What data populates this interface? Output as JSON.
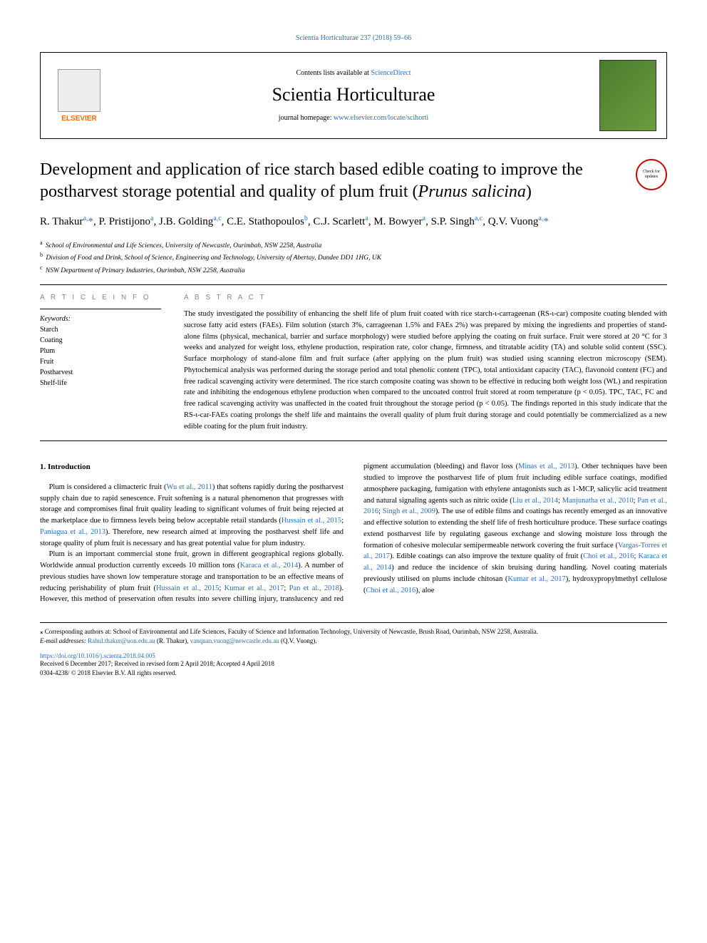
{
  "journal": {
    "top_citation": "Scientia Horticulturae 237 (2018) 59–66",
    "contents_prefix": "Contents lists available at ",
    "contents_link": "ScienceDirect",
    "name": "Scientia Horticulturae",
    "homepage_prefix": "journal homepage: ",
    "homepage_url": "www.elsevier.com/locate/scihorti",
    "elsevier_label": "ELSEVIER"
  },
  "check_updates": {
    "line1": "Check for",
    "line2": "updates"
  },
  "article": {
    "title_pre": "Development and application of rice starch based edible coating to improve the postharvest storage potential and quality of plum fruit (",
    "title_species": "Prunus salicina",
    "title_post": ")",
    "authors_html": "R. Thakur<sup>a,</sup><a href='#'>*</a>, P. Pristijono<sup>a</sup>, J.B. Golding<sup>a,c</sup>, C.E. Stathopoulos<sup>b</sup>, C.J. Scarlett<sup>a</sup>, M. Bowyer<sup>a</sup>, S.P. Singh<sup>a,c</sup>, Q.V. Vuong<sup>a,</sup><a href='#'>*</a>",
    "affiliations": [
      {
        "sup": "a",
        "text": "School of Environmental and Life Sciences, University of Newcastle, Ourimbah, NSW 2258, Australia"
      },
      {
        "sup": "b",
        "text": "Division of Food and Drink, School of Science, Engineering and Technology, University of Abertay, Dundee DD1 1HG, UK"
      },
      {
        "sup": "c",
        "text": "NSW Department of Primary Industries, Ourimbah, NSW 2258, Australia"
      }
    ]
  },
  "info": {
    "article_info_label": "A R T I C L E  I N F O",
    "abstract_label": "A B S T R A C T",
    "keywords_label": "Keywords:",
    "keywords": [
      "Starch",
      "Coating",
      "Plum",
      "Fruit",
      "Postharvest",
      "Shelf-life"
    ],
    "abstract": "The study investigated the possibility of enhancing the shelf life of plum fruit coated with rice starch-ι-carrageenan (RS-ι-car) composite coating blended with sucrose fatty acid esters (FAEs). Film solution (starch 3%, carrageenan 1.5% and FAEs 2%) was prepared by mixing the ingredients and properties of stand-alone films (physical, mechanical, barrier and surface morphology) were studied before applying the coating on fruit surface. Fruit were stored at 20 °C for 3 weeks and analyzed for weight loss, ethylene production, respiration rate, color change, firmness, and titratable acidity (TA) and soluble solid content (SSC). Surface morphology of stand-alone film and fruit surface (after applying on the plum fruit) was studied using scanning electron microscopy (SEM). Phytochemical analysis was performed during the storage period and total phenolic content (TPC), total antioxidant capacity (TAC), flavonoid content (FC) and free radical scavenging activity were determined. The rice starch composite coating was shown to be effective in reducing both weight loss (WL) and respiration rate and inhibiting the endogenous ethylene production when compared to the uncoated control fruit stored at room temperature (p < 0.05). TPC, TAC, FC and free radical scavenging activity was unaffected in the coated fruit throughout the storage period (p < 0.05). The findings reported in this study indicate that the RS-ι-car-FAEs coating prolongs the shelf life and maintains the overall quality of plum fruit during storage and could potentially be commercialized as a new edible coating for the plum fruit industry."
  },
  "body": {
    "heading": "1. Introduction",
    "p1_pre": "Plum is considered a climacteric fruit (",
    "p1_ref1": "Wu et al., 2011",
    "p1_mid1": ") that softens rapidly during the postharvest supply chain due to rapid senescence. Fruit softening is a natural phenomenon that progresses with storage and compromises final fruit quality leading to significant volumes of fruit being rejected at the marketplace due to firmness levels being below acceptable retail standards (",
    "p1_ref2": "Hussain et al., 2015",
    "p1_sep1": "; ",
    "p1_ref3": "Paniagua et al., 2013",
    "p1_end": "). Therefore, new research aimed at improving the postharvest shelf life and storage quality of plum fruit is necessary and has great potential value for plum industry.",
    "p2_pre": "Plum is an important commercial stone fruit, grown in different geographical regions globally. Worldwide annual production currently exceeds 10 million tons (",
    "p2_ref1": "Karaca et al., 2014",
    "p2_mid1": "). A number of previous studies have shown low temperature storage and transportation to be an effective means of reducing perishability of plum fruit (",
    "p2_ref2": "Hussain et al., 2015",
    "p2_sep1": "; ",
    "p2_ref3": "Kumar et al., 2017",
    "p2_sep2": "; ",
    "p2_ref4": "Pan et al., 2018",
    "p2_mid2": "). However, this method of preservation often results into severe chilling injury, translucency and red pigment accumulation (bleeding) and flavor loss (",
    "p2_ref5": "Minas et al., 2013",
    "p2_mid3": "). Other techniques have been studied to improve the postharvest life of plum fruit including edible surface coatings, modified atmosphere packaging, fumigation with ethylene antagonists such as 1-MCP, salicylic acid treatment and natural signaling agents such as nitric oxide (",
    "p2_ref6": "Liu et al., 2014",
    "p2_sep3": "; ",
    "p2_ref7": "Manjunatha et al., 2010",
    "p2_sep4": "; ",
    "p2_ref8": "Pan et al., 2016",
    "p2_sep5": "; ",
    "p2_ref9": "Singh et al., 2009",
    "p2_mid4": "). The use of edible films and coatings has recently emerged as an innovative and effective solution to extending the shelf life of fresh horticulture produce. These surface coatings extend postharvest life by regulating gaseous exchange and slowing moisture loss through the formation of cohesive molecular semipermeable network covering the fruit surface (",
    "p2_ref10": "Vargas-Torres et al., 2017",
    "p2_mid5": "). Edible coatings can also improve the texture quality of fruit (",
    "p2_ref11": "Choi et al., 2016",
    "p2_sep6": "; ",
    "p2_ref12": "Karaca et al., 2014",
    "p2_mid6": ") and reduce the incidence of skin bruising during handling. Novel coating materials previously utilised on plums include chitosan (",
    "p2_ref13": "Kumar et al., 2017",
    "p2_mid7": "), hydroxypropylmethyl cellulose (",
    "p2_ref14": "Choi et al., 2016",
    "p2_end": "), aloe"
  },
  "footer": {
    "corr_label": "⁎ Corresponding authors at: School of Environmental and Life Sciences, Faculty of Science and Information Technology, University of Newcastle, Brush Road, Ourimbah, NSW 2258, Australia.",
    "email_label": "E-mail addresses: ",
    "email1": "Rahul.thakur@uon.edu.au",
    "email1_name": " (R. Thakur), ",
    "email2": "vanquan.vuong@newcastle.edu.au",
    "email2_name": " (Q.V. Vuong).",
    "doi": "https://doi.org/10.1016/j.scienta.2018.04.005",
    "received": "Received 6 December 2017; Received in revised form 2 April 2018; Accepted 4 April 2018",
    "copyright": "0304-4238/ © 2018 Elsevier B.V. All rights reserved."
  }
}
